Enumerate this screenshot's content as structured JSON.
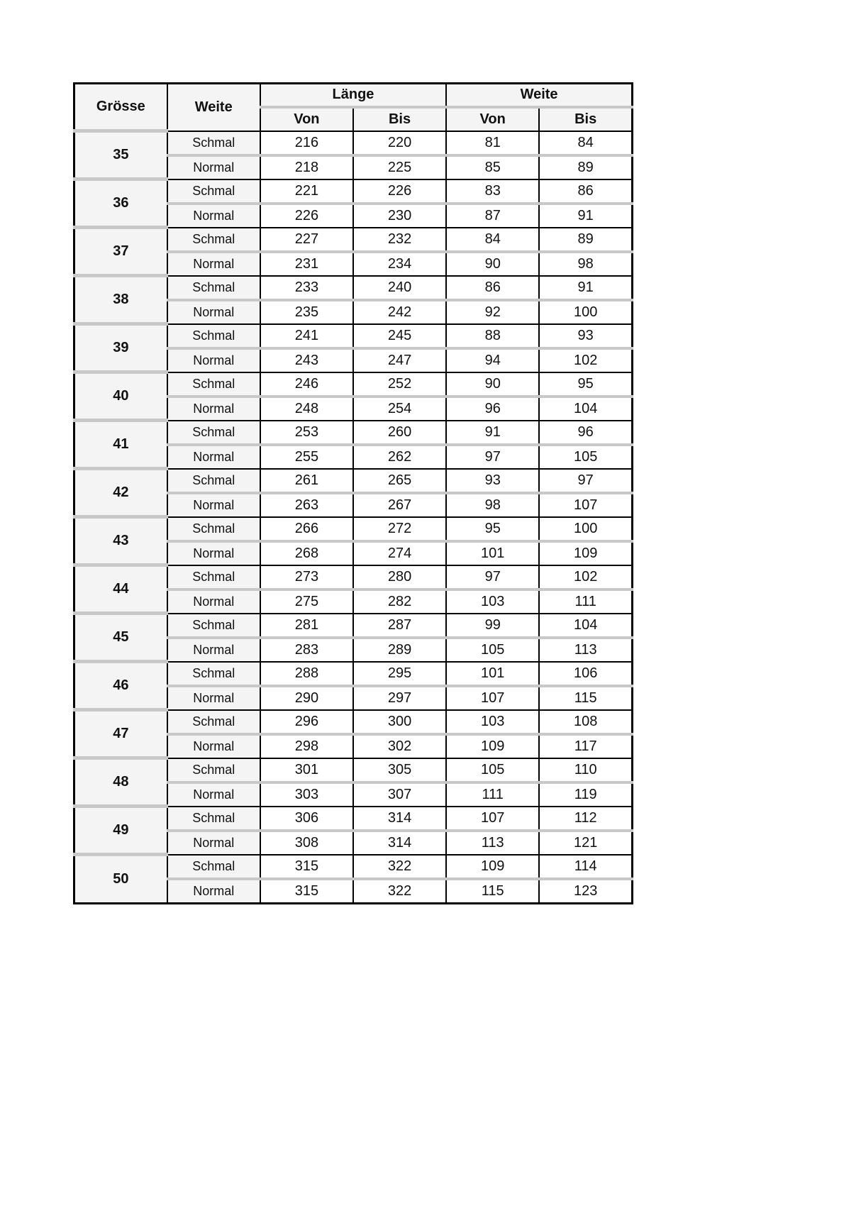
{
  "headers": {
    "groesse": "Grösse",
    "weite": "Weite",
    "laenge": "Länge",
    "weite_group": "Weite",
    "von": "Von",
    "bis": "Bis"
  },
  "rows": [
    {
      "size": "35",
      "schmal": [
        "Schmal",
        "216",
        "220",
        "81",
        "84"
      ],
      "normal": [
        "Normal",
        "218",
        "225",
        "85",
        "89"
      ]
    },
    {
      "size": "36",
      "schmal": [
        "Schmal",
        "221",
        "226",
        "83",
        "86"
      ],
      "normal": [
        "Normal",
        "226",
        "230",
        "87",
        "91"
      ]
    },
    {
      "size": "37",
      "schmal": [
        "Schmal",
        "227",
        "232",
        "84",
        "89"
      ],
      "normal": [
        "Normal",
        "231",
        "234",
        "90",
        "98"
      ]
    },
    {
      "size": "38",
      "schmal": [
        "Schmal",
        "233",
        "240",
        "86",
        "91"
      ],
      "normal": [
        "Normal",
        "235",
        "242",
        "92",
        "100"
      ]
    },
    {
      "size": "39",
      "schmal": [
        "Schmal",
        "241",
        "245",
        "88",
        "93"
      ],
      "normal": [
        "Normal",
        "243",
        "247",
        "94",
        "102"
      ]
    },
    {
      "size": "40",
      "schmal": [
        "Schmal",
        "246",
        "252",
        "90",
        "95"
      ],
      "normal": [
        "Normal",
        "248",
        "254",
        "96",
        "104"
      ]
    },
    {
      "size": "41",
      "schmal": [
        "Schmal",
        "253",
        "260",
        "91",
        "96"
      ],
      "normal": [
        "Normal",
        "255",
        "262",
        "97",
        "105"
      ]
    },
    {
      "size": "42",
      "schmal": [
        "Schmal",
        "261",
        "265",
        "93",
        "97"
      ],
      "normal": [
        "Normal",
        "263",
        "267",
        "98",
        "107"
      ]
    },
    {
      "size": "43",
      "schmal": [
        "Schmal",
        "266",
        "272",
        "95",
        "100"
      ],
      "normal": [
        "Normal",
        "268",
        "274",
        "101",
        "109"
      ]
    },
    {
      "size": "44",
      "schmal": [
        "Schmal",
        "273",
        "280",
        "97",
        "102"
      ],
      "normal": [
        "Normal",
        "275",
        "282",
        "103",
        "111"
      ]
    },
    {
      "size": "45",
      "schmal": [
        "Schmal",
        "281",
        "287",
        "99",
        "104"
      ],
      "normal": [
        "Normal",
        "283",
        "289",
        "105",
        "113"
      ]
    },
    {
      "size": "46",
      "schmal": [
        "Schmal",
        "288",
        "295",
        "101",
        "106"
      ],
      "normal": [
        "Normal",
        "290",
        "297",
        "107",
        "115"
      ]
    },
    {
      "size": "47",
      "schmal": [
        "Schmal",
        "296",
        "300",
        "103",
        "108"
      ],
      "normal": [
        "Normal",
        "298",
        "302",
        "109",
        "117"
      ]
    },
    {
      "size": "48",
      "schmal": [
        "Schmal",
        "301",
        "305",
        "105",
        "110"
      ],
      "normal": [
        "Normal",
        "303",
        "307",
        "111",
        "119"
      ]
    },
    {
      "size": "49",
      "schmal": [
        "Schmal",
        "306",
        "314",
        "107",
        "112"
      ],
      "normal": [
        "Normal",
        "308",
        "314",
        "113",
        "121"
      ]
    },
    {
      "size": "50",
      "schmal": [
        "Schmal",
        "315",
        "322",
        "109",
        "114"
      ],
      "normal": [
        "Normal",
        "315",
        "322",
        "115",
        "123"
      ]
    }
  ]
}
